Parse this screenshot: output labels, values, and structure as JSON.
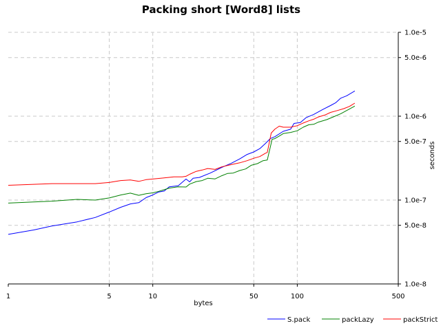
{
  "chart_data": {
    "type": "line",
    "title": "Packing short [Word8] lists",
    "xlabel": "bytes",
    "ylabel": "seconds",
    "x_scale": "log",
    "y_scale": "log",
    "xlim": [
      1,
      500
    ],
    "ylim": [
      1e-08,
      1e-05
    ],
    "x_ticks": [
      {
        "value": 1,
        "label": "1"
      },
      {
        "value": 5,
        "label": "5"
      },
      {
        "value": 10,
        "label": "10"
      },
      {
        "value": 50,
        "label": "50"
      },
      {
        "value": 100,
        "label": "100"
      },
      {
        "value": 500,
        "label": "500"
      }
    ],
    "y_ticks": [
      {
        "value": 1e-05,
        "label": "1.0e-5"
      },
      {
        "value": 5e-06,
        "label": "5.0e-6"
      },
      {
        "value": 1e-06,
        "label": "1.0e-6"
      },
      {
        "value": 5e-07,
        "label": "5.0e-7"
      },
      {
        "value": 1e-07,
        "label": "1.0e-7"
      },
      {
        "value": 5e-08,
        "label": "5.0e-8"
      },
      {
        "value": 1e-08,
        "label": "1.0e-8"
      }
    ],
    "grid": true,
    "legend_position": "bottom-right",
    "series": [
      {
        "name": "S.pack",
        "color": "#0000ff",
        "points": [
          [
            1,
            3.9e-08
          ],
          [
            1.5,
            4.4e-08
          ],
          [
            2,
            4.9e-08
          ],
          [
            3,
            5.5e-08
          ],
          [
            4,
            6.2e-08
          ],
          [
            5,
            7.2e-08
          ],
          [
            6,
            8.2e-08
          ],
          [
            7,
            9e-08
          ],
          [
            8,
            9.3e-08
          ],
          [
            9,
            1.07e-07
          ],
          [
            10,
            1.15e-07
          ],
          [
            11,
            1.25e-07
          ],
          [
            12,
            1.28e-07
          ],
          [
            13,
            1.44e-07
          ],
          [
            15,
            1.48e-07
          ],
          [
            17,
            1.78e-07
          ],
          [
            18,
            1.65e-07
          ],
          [
            19,
            1.82e-07
          ],
          [
            21,
            1.86e-07
          ],
          [
            25,
            2.1e-07
          ],
          [
            30,
            2.45e-07
          ],
          [
            35,
            2.75e-07
          ],
          [
            40,
            3.1e-07
          ],
          [
            45,
            3.5e-07
          ],
          [
            50,
            3.75e-07
          ],
          [
            55,
            4.1e-07
          ],
          [
            60,
            4.7e-07
          ],
          [
            65,
            5.4e-07
          ],
          [
            70,
            5.7e-07
          ],
          [
            80,
            6.6e-07
          ],
          [
            90,
            7e-07
          ],
          [
            95,
            8.2e-07
          ],
          [
            105,
            8.4e-07
          ],
          [
            115,
            9.6e-07
          ],
          [
            130,
            1.05e-06
          ],
          [
            150,
            1.2e-06
          ],
          [
            170,
            1.34e-06
          ],
          [
            185,
            1.45e-06
          ],
          [
            200,
            1.64e-06
          ],
          [
            220,
            1.75e-06
          ],
          [
            250,
            2e-06
          ]
        ]
      },
      {
        "name": "packLazy",
        "color": "#008000",
        "points": [
          [
            1,
            9.2e-08
          ],
          [
            1.5,
            9.5e-08
          ],
          [
            2,
            9.7e-08
          ],
          [
            3,
            1.02e-07
          ],
          [
            4,
            1e-07
          ],
          [
            5,
            1.06e-07
          ],
          [
            6,
            1.15e-07
          ],
          [
            7,
            1.21e-07
          ],
          [
            8,
            1.14e-07
          ],
          [
            9,
            1.19e-07
          ],
          [
            10,
            1.22e-07
          ],
          [
            11,
            1.27e-07
          ],
          [
            12,
            1.33e-07
          ],
          [
            13,
            1.39e-07
          ],
          [
            15,
            1.44e-07
          ],
          [
            17,
            1.43e-07
          ],
          [
            18,
            1.55e-07
          ],
          [
            20,
            1.66e-07
          ],
          [
            22,
            1.71e-07
          ],
          [
            24,
            1.82e-07
          ],
          [
            27,
            1.79e-07
          ],
          [
            30,
            1.95e-07
          ],
          [
            33,
            2.08e-07
          ],
          [
            36,
            2.1e-07
          ],
          [
            40,
            2.25e-07
          ],
          [
            44,
            2.35e-07
          ],
          [
            48,
            2.6e-07
          ],
          [
            53,
            2.72e-07
          ],
          [
            58,
            2.95e-07
          ],
          [
            62,
            3e-07
          ],
          [
            67,
            5.3e-07
          ],
          [
            70,
            5.4e-07
          ],
          [
            75,
            5.8e-07
          ],
          [
            80,
            6.2e-07
          ],
          [
            90,
            6.4e-07
          ],
          [
            100,
            6.7e-07
          ],
          [
            110,
            7.4e-07
          ],
          [
            120,
            7.9e-07
          ],
          [
            130,
            8e-07
          ],
          [
            140,
            8.5e-07
          ],
          [
            160,
            9.1e-07
          ],
          [
            180,
            9.9e-07
          ],
          [
            200,
            1.07e-06
          ],
          [
            220,
            1.17e-06
          ],
          [
            250,
            1.32e-06
          ]
        ]
      },
      {
        "name": "packStrict",
        "color": "#ff0000",
        "points": [
          [
            1,
            1.5e-07
          ],
          [
            1.5,
            1.54e-07
          ],
          [
            2,
            1.57e-07
          ],
          [
            3,
            1.57e-07
          ],
          [
            4,
            1.57e-07
          ],
          [
            5,
            1.62e-07
          ],
          [
            6,
            1.71e-07
          ],
          [
            7,
            1.74e-07
          ],
          [
            8,
            1.67e-07
          ],
          [
            9,
            1.75e-07
          ],
          [
            10,
            1.78e-07
          ],
          [
            12,
            1.84e-07
          ],
          [
            14,
            1.89e-07
          ],
          [
            16,
            1.89e-07
          ],
          [
            17,
            1.92e-07
          ],
          [
            18,
            2.03e-07
          ],
          [
            20,
            2.2e-07
          ],
          [
            22,
            2.28e-07
          ],
          [
            24,
            2.38e-07
          ],
          [
            27,
            2.32e-07
          ],
          [
            30,
            2.49e-07
          ],
          [
            35,
            2.65e-07
          ],
          [
            40,
            2.78e-07
          ],
          [
            45,
            2.95e-07
          ],
          [
            50,
            3.15e-07
          ],
          [
            55,
            3.3e-07
          ],
          [
            60,
            3.6e-07
          ],
          [
            62,
            3.7e-07
          ],
          [
            66,
            6.3e-07
          ],
          [
            70,
            7e-07
          ],
          [
            75,
            7.6e-07
          ],
          [
            80,
            7.4e-07
          ],
          [
            90,
            7.4e-07
          ],
          [
            100,
            7.7e-07
          ],
          [
            110,
            8.3e-07
          ],
          [
            120,
            8.8e-07
          ],
          [
            130,
            9.2e-07
          ],
          [
            140,
            9.8e-07
          ],
          [
            155,
            1.03e-06
          ],
          [
            170,
            1.11e-06
          ],
          [
            190,
            1.17e-06
          ],
          [
            210,
            1.23e-06
          ],
          [
            230,
            1.31e-06
          ],
          [
            250,
            1.43e-06
          ]
        ]
      }
    ]
  }
}
